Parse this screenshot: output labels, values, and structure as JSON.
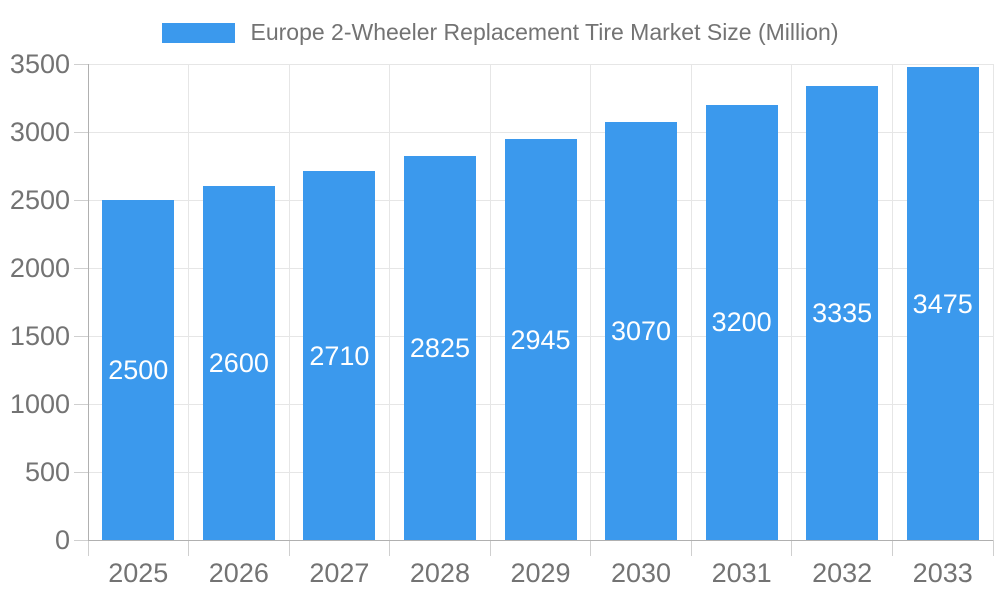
{
  "legend": {
    "label": "Europe 2-Wheeler Replacement Tire Market Size (Million)"
  },
  "colors": {
    "bar": "#3B99ED",
    "grid": "#E6E6E6",
    "axis_line": "#B0B0B0",
    "tick": "#CFCFCF",
    "axis_label_text": "#737373",
    "legend_text": "#737373",
    "value_label_text": "#FFFFFF",
    "background": "#FFFFFF"
  },
  "chart_data": {
    "type": "bar",
    "title": "Europe 2-Wheeler Replacement Tire Market Size (Million)",
    "categories": [
      "2025",
      "2026",
      "2027",
      "2028",
      "2029",
      "2030",
      "2031",
      "2032",
      "2033"
    ],
    "values": [
      2500,
      2600,
      2710,
      2825,
      2945,
      3070,
      3200,
      3335,
      3475
    ],
    "xlabel": "",
    "ylabel": "",
    "ylim": [
      0,
      3500
    ],
    "yticks": [
      0,
      500,
      1000,
      1500,
      2000,
      2500,
      3000,
      3500
    ],
    "grid": true,
    "legend_position": "top",
    "value_label_position": "inside-center"
  }
}
